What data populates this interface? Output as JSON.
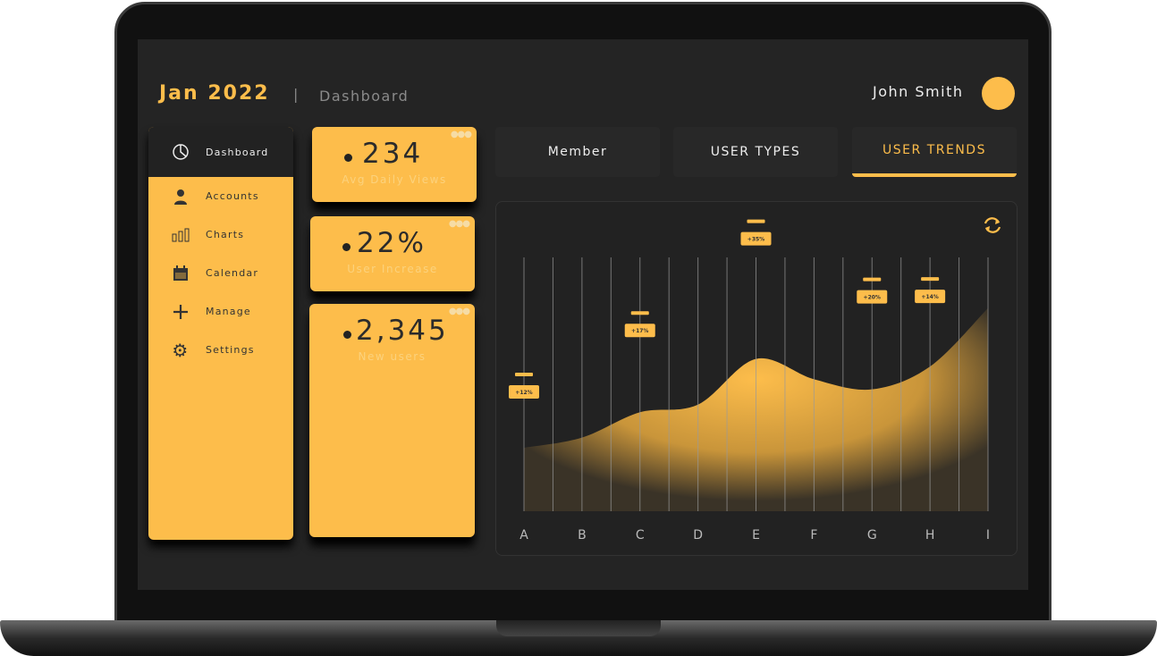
{
  "header": {
    "title": "Jan 2022",
    "separator": "|",
    "breadcrumb": "Dashboard",
    "user_name": "John Smith"
  },
  "sidebar": {
    "items": [
      {
        "label": "Dashboard",
        "icon": "pie-chart-icon",
        "active": true
      },
      {
        "label": "Accounts",
        "icon": "user-icon"
      },
      {
        "label": "Charts",
        "icon": "bar-chart-icon"
      },
      {
        "label": "Calendar",
        "icon": "calendar-icon"
      },
      {
        "label": "Manage",
        "icon": "plus-icon"
      },
      {
        "label": "Settings",
        "icon": "gear-icon"
      }
    ]
  },
  "stats": [
    {
      "value": "234",
      "label": "Avg Daily Views"
    },
    {
      "value": "22%",
      "label": "User Increase"
    },
    {
      "value": "2,345",
      "label": "New users"
    }
  ],
  "tabs": [
    {
      "label": "Member"
    },
    {
      "label": "USER TYPES"
    },
    {
      "label": "USER TRENDS",
      "active": true
    }
  ],
  "colors": {
    "accent": "#fdbd4b",
    "background": "#242424"
  },
  "chart_data": {
    "type": "area",
    "categories": [
      "A",
      "B",
      "C",
      "D",
      "E",
      "F",
      "G",
      "H",
      "I"
    ],
    "values": [
      25,
      29,
      39,
      42,
      60,
      52,
      48,
      57,
      80
    ],
    "ylim": [
      0,
      100
    ],
    "grid": "vertical",
    "annotations": [
      {
        "category": "A",
        "label": "+12%"
      },
      {
        "category": "C",
        "label": "+17%"
      },
      {
        "category": "E",
        "label": "+35%"
      },
      {
        "category": "G",
        "label": "+20%"
      },
      {
        "category": "H",
        "label": "+14%"
      }
    ]
  }
}
